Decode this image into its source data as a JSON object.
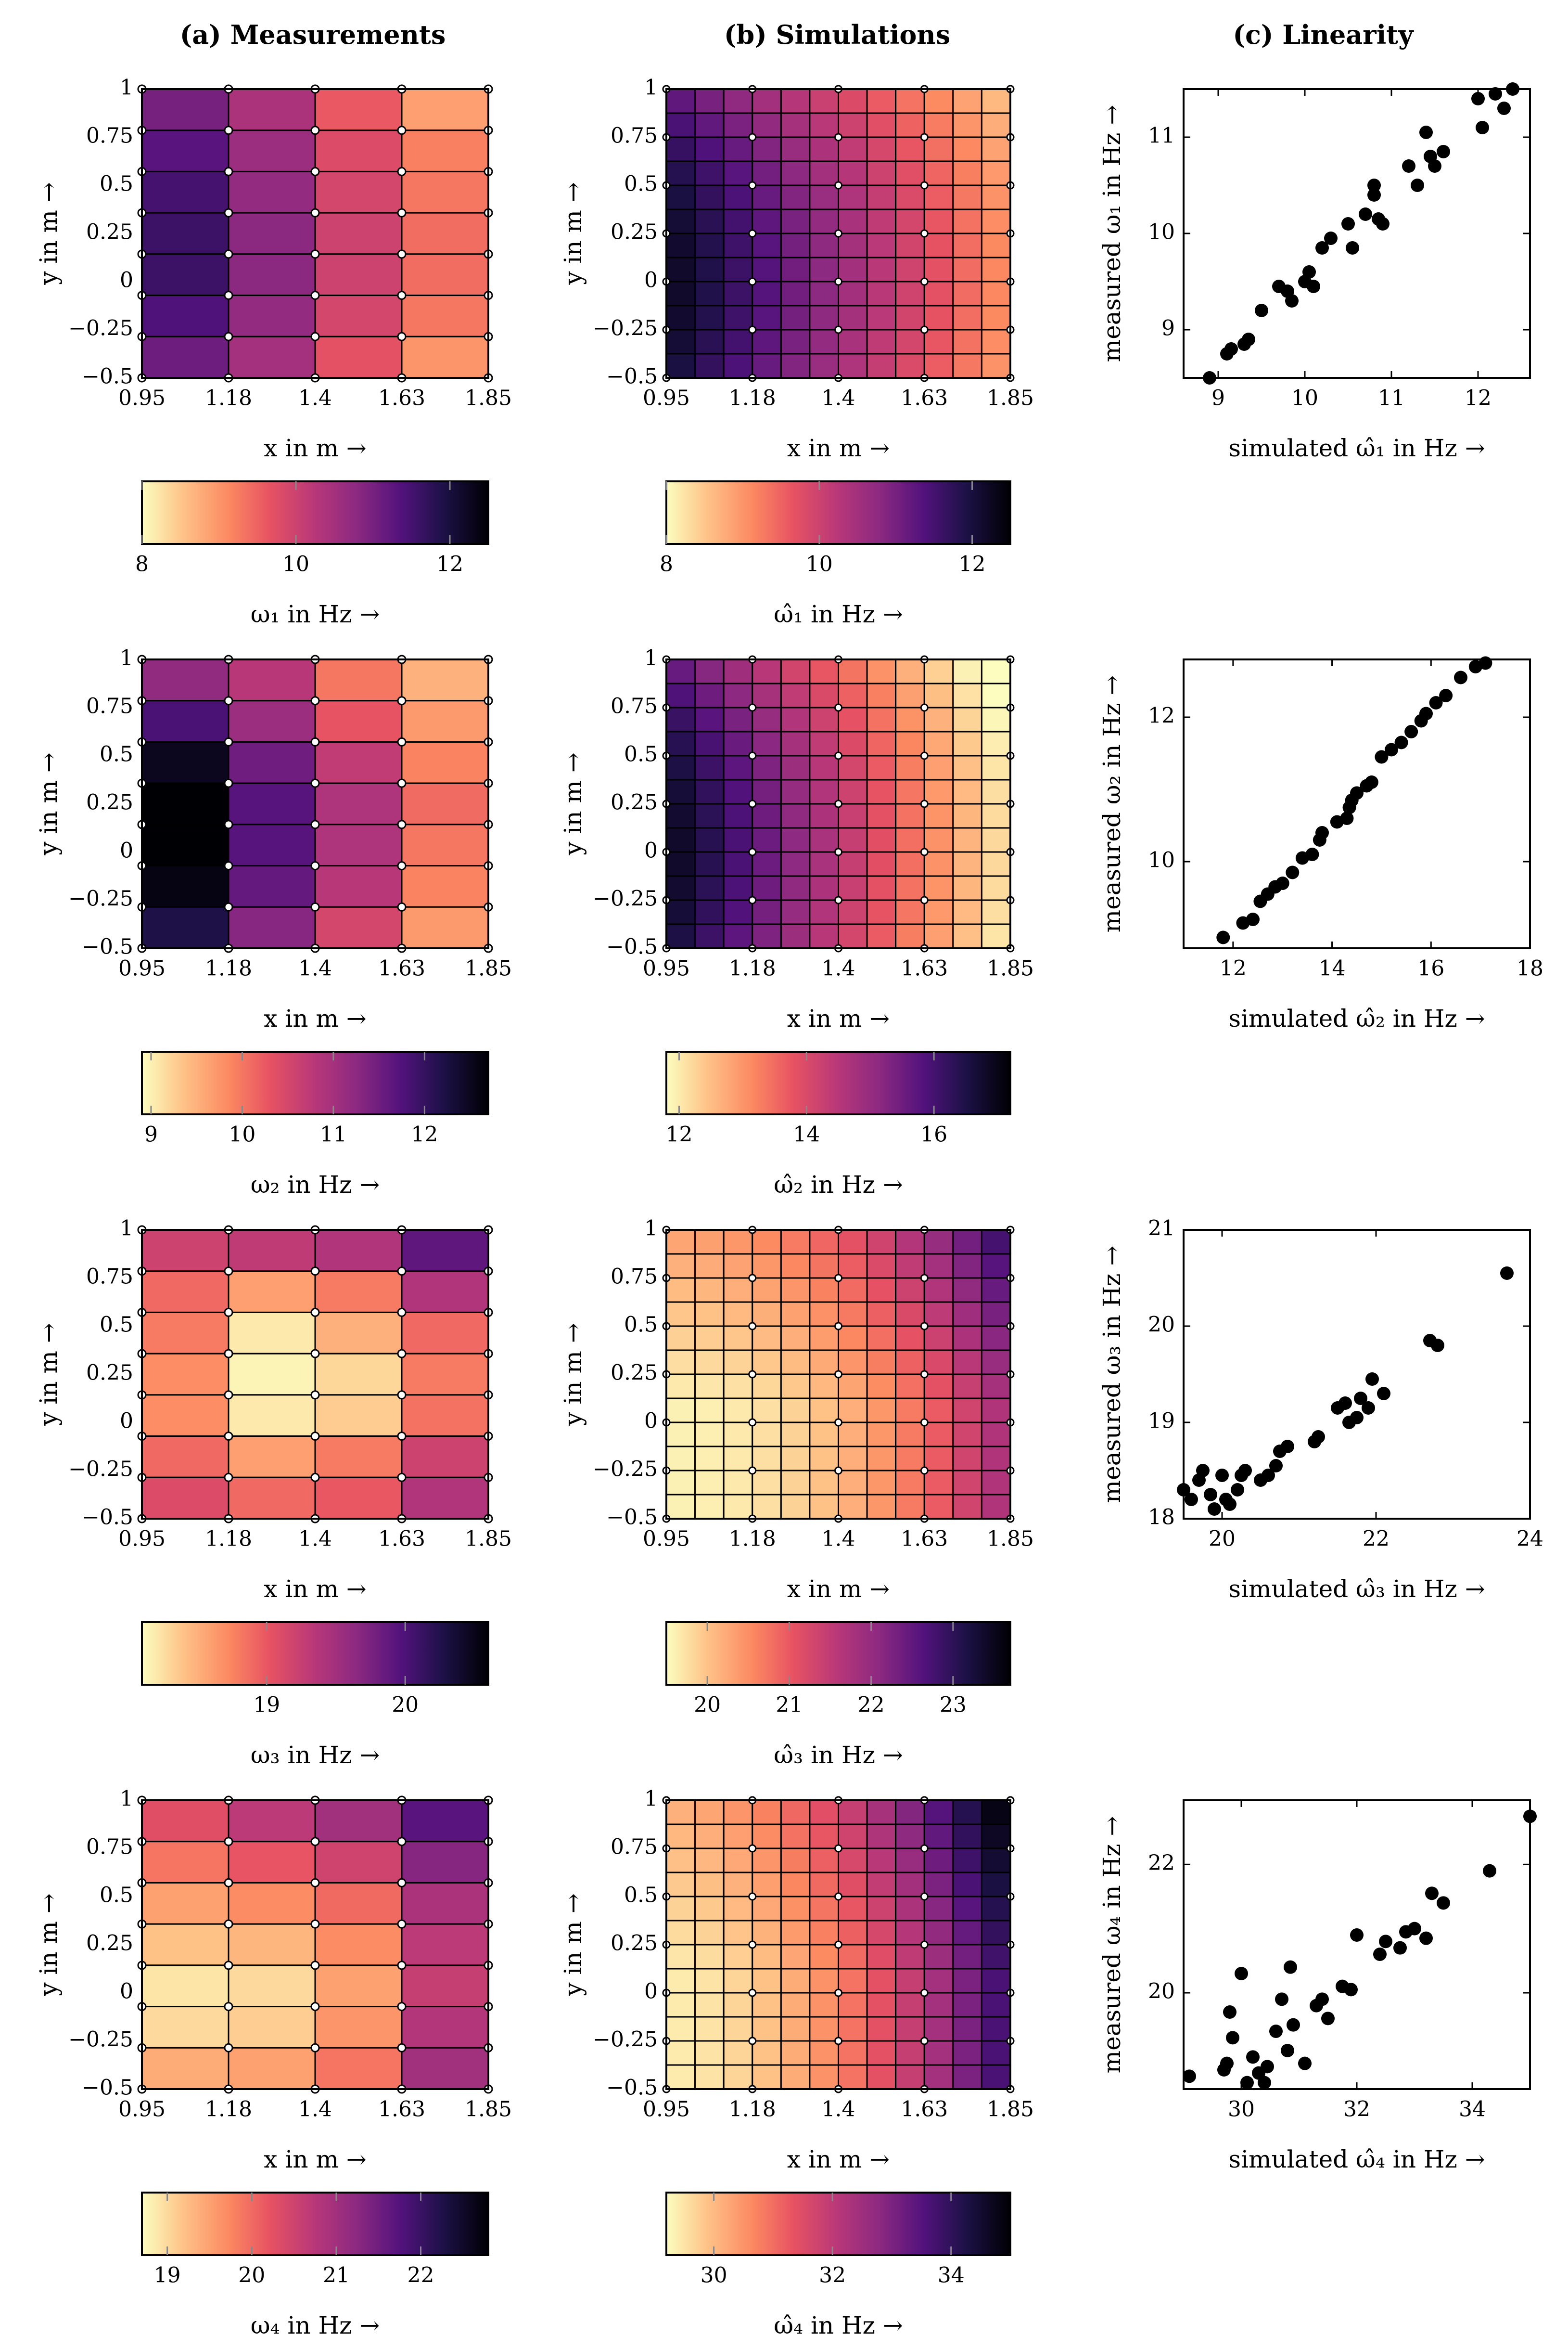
{
  "titles": {
    "measurements": "(a) Measurements",
    "simulations": "(b) Simulations",
    "linearity": "(c) Linearity"
  },
  "axes": {
    "xlabel": "x in m →",
    "ylabel": "y in m →",
    "xticks": [
      "0.95",
      "1.18",
      "1.4",
      "1.63",
      "1.85"
    ],
    "yticks": [
      "1",
      "0.75",
      "0.5",
      "0.25",
      "0",
      "−0.25",
      "−0.5"
    ]
  },
  "colormap": "magma_r",
  "chart_data": [
    {
      "type": "heatmap",
      "panel": "a",
      "row": 1,
      "colorbar_label": "ω₁ in Hz →",
      "clim": [
        8,
        12.5
      ],
      "colorbar_ticks": [
        8,
        10,
        12
      ],
      "values": [
        [
          11.0,
          10.4,
          9.6,
          8.9
        ],
        [
          11.3,
          10.6,
          9.8,
          9.2
        ],
        [
          11.5,
          10.7,
          9.9,
          9.3
        ],
        [
          11.6,
          10.8,
          10.0,
          9.4
        ],
        [
          11.6,
          10.8,
          10.0,
          9.4
        ],
        [
          11.4,
          10.7,
          9.9,
          9.3
        ],
        [
          11.1,
          10.5,
          9.7,
          9.0
        ]
      ]
    },
    {
      "type": "heatmap",
      "panel": "b",
      "row": 1,
      "colorbar_label": "ω̂₁ in Hz →",
      "clim": [
        8,
        12.5
      ],
      "colorbar_ticks": [
        8,
        10,
        12
      ],
      "grid_size": [
        12,
        12
      ],
      "base": 12.3,
      "xslope": 3.3,
      "ycurve": 2.2
    },
    {
      "type": "scatter",
      "panel": "c",
      "row": 1,
      "xlabel": "simulated ω̂₁ in Hz →",
      "ylabel": "measured ω₁ in Hz →",
      "xlim": [
        8.6,
        12.6
      ],
      "ylim": [
        8.5,
        11.5
      ],
      "xticks": [
        9,
        10,
        11,
        12
      ],
      "yticks": [
        9,
        10,
        11
      ],
      "points": [
        [
          8.9,
          8.5
        ],
        [
          9.1,
          8.75
        ],
        [
          9.15,
          8.8
        ],
        [
          9.3,
          8.85
        ],
        [
          9.35,
          8.9
        ],
        [
          9.5,
          9.2
        ],
        [
          9.7,
          9.45
        ],
        [
          9.8,
          9.4
        ],
        [
          9.85,
          9.3
        ],
        [
          10.0,
          9.5
        ],
        [
          10.05,
          9.6
        ],
        [
          10.1,
          9.45
        ],
        [
          10.2,
          9.85
        ],
        [
          10.3,
          9.95
        ],
        [
          10.5,
          10.1
        ],
        [
          10.55,
          9.85
        ],
        [
          10.7,
          10.2
        ],
        [
          10.8,
          10.4
        ],
        [
          10.8,
          10.5
        ],
        [
          10.85,
          10.15
        ],
        [
          10.9,
          10.1
        ],
        [
          11.2,
          10.7
        ],
        [
          11.3,
          10.5
        ],
        [
          11.4,
          11.05
        ],
        [
          11.45,
          10.8
        ],
        [
          11.5,
          10.7
        ],
        [
          11.6,
          10.85
        ],
        [
          12.0,
          11.4
        ],
        [
          12.05,
          11.1
        ],
        [
          12.2,
          11.45
        ],
        [
          12.3,
          11.3
        ],
        [
          12.4,
          11.5
        ]
      ]
    },
    {
      "type": "heatmap",
      "panel": "a",
      "row": 2,
      "colorbar_label": "ω₂ in Hz →",
      "clim": [
        8.9,
        12.7
      ],
      "colorbar_ticks": [
        9,
        10,
        11,
        12
      ],
      "values": [
        [
          11.2,
          10.8,
          10.0,
          9.5
        ],
        [
          11.8,
          11.1,
          10.3,
          9.7
        ],
        [
          12.5,
          11.5,
          10.7,
          9.9
        ],
        [
          12.7,
          11.7,
          10.9,
          10.1
        ],
        [
          12.7,
          11.7,
          10.9,
          10.0
        ],
        [
          12.6,
          11.6,
          10.8,
          9.9
        ],
        [
          12.2,
          11.3,
          10.5,
          9.7
        ]
      ]
    },
    {
      "type": "heatmap",
      "panel": "b",
      "row": 2,
      "colorbar_label": "ω̂₂ in Hz →",
      "clim": [
        11.8,
        17.2
      ],
      "colorbar_ticks": [
        12,
        14,
        16
      ],
      "grid_size": [
        12,
        12
      ],
      "base": 17.0,
      "xslope": 5.0,
      "ycurve": 2.8
    },
    {
      "type": "scatter",
      "panel": "c",
      "row": 2,
      "xlabel": "simulated ω̂₂ in Hz →",
      "ylabel": "measured ω₂ in Hz →",
      "xlim": [
        11,
        18
      ],
      "ylim": [
        8.8,
        12.8
      ],
      "xticks": [
        12,
        14,
        16,
        18
      ],
      "yticks": [
        10,
        12
      ],
      "points": [
        [
          11.8,
          8.95
        ],
        [
          12.2,
          9.15
        ],
        [
          12.4,
          9.2
        ],
        [
          12.55,
          9.45
        ],
        [
          12.7,
          9.55
        ],
        [
          12.85,
          9.65
        ],
        [
          13.0,
          9.7
        ],
        [
          13.2,
          9.85
        ],
        [
          13.4,
          10.05
        ],
        [
          13.6,
          10.1
        ],
        [
          13.75,
          10.3
        ],
        [
          13.8,
          10.4
        ],
        [
          14.1,
          10.55
        ],
        [
          14.3,
          10.6
        ],
        [
          14.35,
          10.75
        ],
        [
          14.4,
          10.85
        ],
        [
          14.5,
          10.95
        ],
        [
          14.7,
          11.05
        ],
        [
          14.8,
          11.1
        ],
        [
          15.0,
          11.45
        ],
        [
          15.2,
          11.55
        ],
        [
          15.4,
          11.65
        ],
        [
          15.6,
          11.8
        ],
        [
          15.8,
          11.95
        ],
        [
          15.9,
          12.05
        ],
        [
          16.1,
          12.2
        ],
        [
          16.3,
          12.3
        ],
        [
          16.6,
          12.55
        ],
        [
          16.9,
          12.7
        ],
        [
          17.1,
          12.75
        ]
      ]
    },
    {
      "type": "heatmap",
      "panel": "a",
      "row": 3,
      "colorbar_label": "ω₃ in Hz →",
      "clim": [
        18.1,
        20.6
      ],
      "colorbar_ticks": [
        19,
        20
      ],
      "values": [
        [
          19.2,
          19.3,
          19.4,
          19.9
        ],
        [
          18.9,
          18.6,
          18.8,
          19.4
        ],
        [
          18.8,
          18.2,
          18.5,
          18.9
        ],
        [
          18.7,
          18.15,
          18.3,
          18.8
        ],
        [
          18.7,
          18.2,
          18.35,
          18.85
        ],
        [
          18.9,
          18.6,
          18.8,
          19.2
        ],
        [
          19.1,
          18.9,
          19.0,
          19.4
        ]
      ]
    },
    {
      "type": "heatmap",
      "panel": "b",
      "row": 3,
      "colorbar_label": "ω̂₃ in Hz →",
      "clim": [
        19.5,
        23.7
      ],
      "colorbar_ticks": [
        20,
        21,
        22,
        23
      ],
      "grid_size": [
        12,
        12
      ],
      "base": 19.6,
      "xslope": 2.3,
      "ycurve": 1.3,
      "xpow": 2.2
    },
    {
      "type": "scatter",
      "panel": "c",
      "row": 3,
      "xlabel": "simulated ω̂₃ in Hz →",
      "ylabel": "measured ω₃ in Hz →",
      "xlim": [
        19.5,
        24
      ],
      "ylim": [
        18,
        21
      ],
      "xticks": [
        20,
        22,
        24
      ],
      "yticks": [
        18,
        19,
        20,
        21
      ],
      "points": [
        [
          19.5,
          18.3
        ],
        [
          19.6,
          18.2
        ],
        [
          19.7,
          18.4
        ],
        [
          19.75,
          18.5
        ],
        [
          19.85,
          18.25
        ],
        [
          19.9,
          18.1
        ],
        [
          20.0,
          18.45
        ],
        [
          20.05,
          18.2
        ],
        [
          20.1,
          18.15
        ],
        [
          20.2,
          18.3
        ],
        [
          20.25,
          18.45
        ],
        [
          20.3,
          18.5
        ],
        [
          20.5,
          18.4
        ],
        [
          20.6,
          18.45
        ],
        [
          20.7,
          18.55
        ],
        [
          20.75,
          18.7
        ],
        [
          20.85,
          18.75
        ],
        [
          21.2,
          18.8
        ],
        [
          21.25,
          18.85
        ],
        [
          21.5,
          19.15
        ],
        [
          21.6,
          19.2
        ],
        [
          21.65,
          19.0
        ],
        [
          21.75,
          19.05
        ],
        [
          21.8,
          19.25
        ],
        [
          21.9,
          19.15
        ],
        [
          21.95,
          19.45
        ],
        [
          22.1,
          19.3
        ],
        [
          22.7,
          19.85
        ],
        [
          22.8,
          19.8
        ],
        [
          23.7,
          20.55
        ]
      ]
    },
    {
      "type": "heatmap",
      "panel": "a",
      "row": 4,
      "colorbar_label": "ω₄ in Hz →",
      "clim": [
        18.7,
        22.8
      ],
      "colorbar_ticks": [
        19,
        20,
        21,
        22
      ],
      "values": [
        [
          20.3,
          20.7,
          21.0,
          21.7
        ],
        [
          19.9,
          20.2,
          20.5,
          21.3
        ],
        [
          19.5,
          19.7,
          20.0,
          20.9
        ],
        [
          19.2,
          19.3,
          19.7,
          20.7
        ],
        [
          18.9,
          19.0,
          19.5,
          20.6
        ],
        [
          19.0,
          19.1,
          19.6,
          20.8
        ],
        [
          19.4,
          19.5,
          19.9,
          21.0
        ]
      ]
    },
    {
      "type": "heatmap",
      "panel": "b",
      "row": 4,
      "colorbar_label": "ω̂₄ in Hz →",
      "clim": [
        29.2,
        35.0
      ],
      "colorbar_ticks": [
        30,
        32,
        34
      ],
      "grid_size": [
        12,
        12
      ],
      "base": 29.4,
      "xslope": 4.6,
      "ycurve": 1.4,
      "xpow": 1.8
    },
    {
      "type": "scatter",
      "panel": "c",
      "row": 4,
      "xlabel": "simulated ω̂₄ in Hz →",
      "ylabel": "measured ω₄ in Hz →",
      "xlim": [
        29,
        35
      ],
      "ylim": [
        18.5,
        23
      ],
      "xticks": [
        30,
        32,
        34
      ],
      "yticks": [
        20,
        22
      ],
      "points": [
        [
          29.1,
          18.7
        ],
        [
          29.7,
          18.8
        ],
        [
          29.75,
          18.9
        ],
        [
          29.8,
          19.7
        ],
        [
          29.85,
          19.3
        ],
        [
          30.0,
          20.3
        ],
        [
          30.1,
          18.6
        ],
        [
          30.2,
          19.0
        ],
        [
          30.3,
          18.75
        ],
        [
          30.4,
          18.6
        ],
        [
          30.45,
          18.85
        ],
        [
          30.6,
          19.4
        ],
        [
          30.7,
          19.9
        ],
        [
          30.8,
          19.1
        ],
        [
          30.85,
          20.4
        ],
        [
          30.9,
          19.5
        ],
        [
          31.1,
          18.9
        ],
        [
          31.3,
          19.8
        ],
        [
          31.4,
          19.9
        ],
        [
          31.5,
          19.6
        ],
        [
          31.75,
          20.1
        ],
        [
          31.9,
          20.05
        ],
        [
          32.0,
          20.9
        ],
        [
          32.4,
          20.6
        ],
        [
          32.5,
          20.8
        ],
        [
          32.75,
          20.7
        ],
        [
          32.85,
          20.95
        ],
        [
          33.0,
          21.0
        ],
        [
          33.2,
          20.85
        ],
        [
          33.3,
          21.55
        ],
        [
          33.5,
          21.4
        ],
        [
          34.3,
          21.9
        ],
        [
          35.0,
          22.75
        ]
      ]
    }
  ]
}
